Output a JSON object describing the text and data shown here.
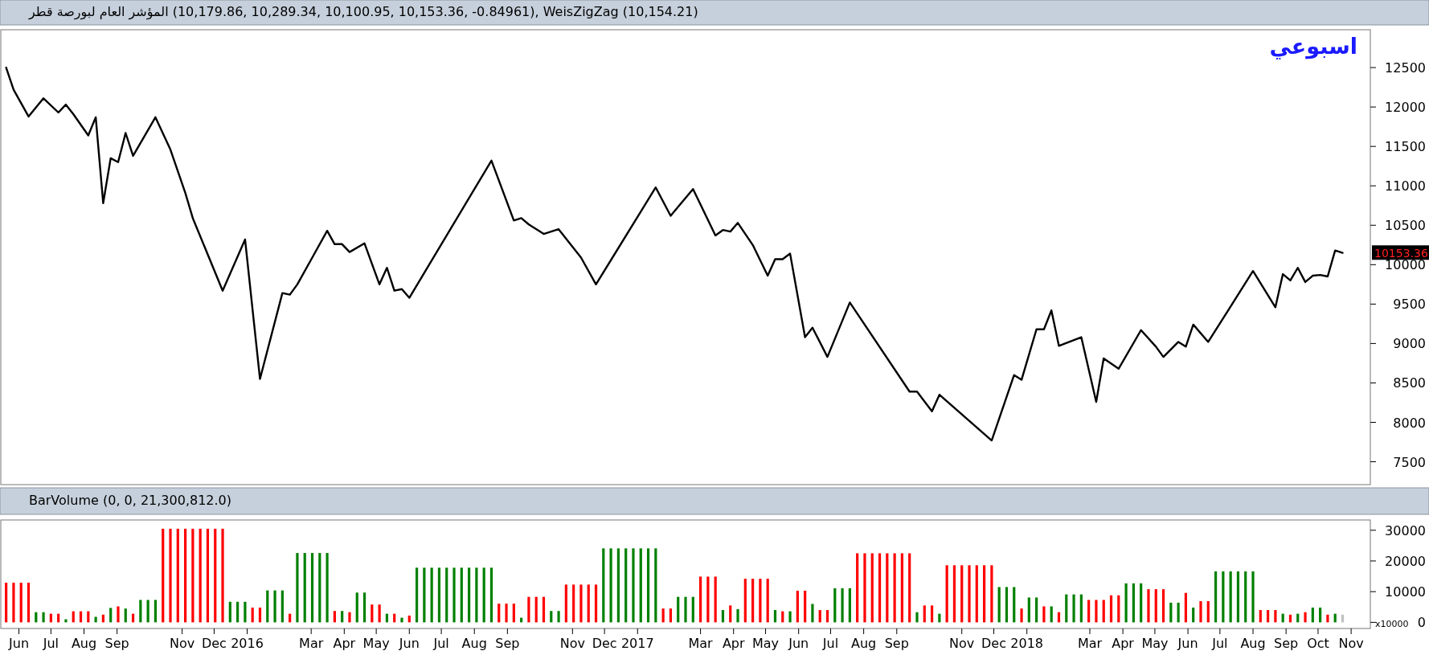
{
  "chart_data": [
    {
      "type": "line",
      "title": "المؤشر العام لبورصة قطر (10,179.86, 10,289.34, 10,100.95, 10,153.36, -0.84961), WeisZigZag (10,154.21)",
      "color": "#000000",
      "x": [
        "2015-05-20",
        "2015-05-27",
        "2015-06-10",
        "2015-06-24",
        "2015-07-08",
        "2015-07-15",
        "2015-07-22",
        "2015-08-05",
        "2015-08-12",
        "2015-08-19",
        "2015-08-26",
        "2015-09-02",
        "2015-09-09",
        "2015-09-16",
        "2015-10-07",
        "2015-10-21",
        "2015-11-04",
        "2015-11-11",
        "2015-12-09",
        "2015-12-30",
        "2016-01-13",
        "2016-02-03",
        "2016-02-10",
        "2016-02-17",
        "2016-03-02",
        "2016-03-16",
        "2016-03-23",
        "2016-03-30",
        "2016-04-06",
        "2016-04-20",
        "2016-05-04",
        "2016-05-11",
        "2016-05-18",
        "2016-05-25",
        "2016-06-01",
        "2016-08-17",
        "2016-09-07",
        "2016-09-14",
        "2016-09-21",
        "2016-10-05",
        "2016-10-19",
        "2016-11-09",
        "2016-11-23",
        "2017-01-18",
        "2017-02-01",
        "2017-02-22",
        "2017-03-15",
        "2017-03-22",
        "2017-03-29",
        "2017-04-05",
        "2017-04-19",
        "2017-05-03",
        "2017-05-10",
        "2017-05-17",
        "2017-05-24",
        "2017-06-07",
        "2017-06-14",
        "2017-06-28",
        "2017-07-19",
        "2017-09-13",
        "2017-09-20",
        "2017-10-04",
        "2017-10-11",
        "2017-11-29",
        "2017-12-20",
        "2017-12-27",
        "2018-01-10",
        "2018-01-17",
        "2018-01-24",
        "2018-01-31",
        "2018-02-21",
        "2018-03-07",
        "2018-03-14",
        "2018-03-28",
        "2018-04-18",
        "2018-05-02",
        "2018-05-09",
        "2018-05-23",
        "2018-05-30",
        "2018-06-06",
        "2018-06-20",
        "2018-08-01",
        "2018-08-22",
        "2018-08-29",
        "2018-09-05",
        "2018-09-12",
        "2018-09-19",
        "2018-09-26",
        "2018-10-03",
        "2018-10-10",
        "2018-10-17",
        "2018-10-24"
      ],
      "values": [
        12500,
        12220,
        11880,
        12110,
        11930,
        12030,
        11910,
        11640,
        11870,
        10780,
        11350,
        11300,
        11670,
        11380,
        11870,
        11460,
        10910,
        10590,
        9670,
        10320,
        8550,
        9640,
        9620,
        9750,
        10090,
        10430,
        10260,
        10260,
        10160,
        10270,
        9750,
        9960,
        9670,
        9690,
        9580,
        11320,
        10560,
        10590,
        10510,
        10390,
        10450,
        10090,
        9750,
        10980,
        10620,
        10960,
        10370,
        10440,
        10420,
        10530,
        10250,
        9860,
        10070,
        10070,
        10140,
        9080,
        9200,
        8830,
        9520,
        8390,
        8390,
        8140,
        8350,
        7770,
        8600,
        8540,
        9180,
        9180,
        9420,
        8970,
        9080,
        8260,
        8810,
        8680,
        9170,
        8960,
        8830,
        9020,
        8960,
        9240,
        9020,
        9920,
        9460,
        9880,
        9800,
        9960,
        9780,
        9860,
        9870,
        9850,
        10180,
        10150
      ],
      "xlim": [
        "2015-05-15",
        "2018-11-19"
      ],
      "ylim": [
        7210,
        12980
      ],
      "yticks": [
        7500,
        8000,
        8500,
        9000,
        9500,
        10000,
        10500,
        11000,
        11500,
        12000,
        12500
      ],
      "tick_labels": "y",
      "annotations": [
        "اسبوعي",
        {
          "text": "10153.36",
          "x": "2018-10-24",
          "y": 10153.36
        }
      ]
    },
    {
      "type": "bar",
      "title": "BarVolume (0, 0, 21,300,812.0)",
      "ylabel": "x10000",
      "x": [
        "2015-05-20",
        "2015-05-27",
        "2015-06-03",
        "2015-06-10",
        "2015-06-17",
        "2015-06-24",
        "2015-07-01",
        "2015-07-08",
        "2015-07-15",
        "2015-07-22",
        "2015-07-29",
        "2015-08-05",
        "2015-08-12",
        "2015-08-19",
        "2015-08-26",
        "2015-09-02",
        "2015-09-09",
        "2015-09-16",
        "2015-09-23",
        "2015-09-30",
        "2015-10-07",
        "2015-10-14",
        "2015-10-21",
        "2015-10-28",
        "2015-11-04",
        "2015-11-11",
        "2015-11-18",
        "2015-11-25",
        "2015-12-02",
        "2015-12-09",
        "2015-12-16",
        "2015-12-23",
        "2015-12-30",
        "2016-01-06",
        "2016-01-13",
        "2016-01-20",
        "2016-01-27",
        "2016-02-03",
        "2016-02-10",
        "2016-02-17",
        "2016-02-24",
        "2016-03-02",
        "2016-03-09",
        "2016-03-16",
        "2016-03-23",
        "2016-03-30",
        "2016-04-06",
        "2016-04-13",
        "2016-04-20",
        "2016-04-27",
        "2016-05-04",
        "2016-05-11",
        "2016-05-18",
        "2016-05-25",
        "2016-06-01",
        "2016-06-08",
        "2016-06-15",
        "2016-06-22",
        "2016-06-29",
        "2016-07-06",
        "2016-07-13",
        "2016-07-20",
        "2016-07-27",
        "2016-08-03",
        "2016-08-10",
        "2016-08-17",
        "2016-08-24",
        "2016-08-31",
        "2016-09-07",
        "2016-09-14",
        "2016-09-21",
        "2016-09-28",
        "2016-10-05",
        "2016-10-12",
        "2016-10-19",
        "2016-10-26",
        "2016-11-02",
        "2016-11-09",
        "2016-11-16",
        "2016-11-23",
        "2016-11-30",
        "2016-12-07",
        "2016-12-14",
        "2016-12-21",
        "2016-12-28",
        "2017-01-04",
        "2017-01-11",
        "2017-01-18",
        "2017-01-25",
        "2017-02-01",
        "2017-02-08",
        "2017-02-15",
        "2017-02-22",
        "2017-03-01",
        "2017-03-08",
        "2017-03-15",
        "2017-03-22",
        "2017-03-29",
        "2017-04-05",
        "2017-04-12",
        "2017-04-19",
        "2017-04-26",
        "2017-05-03",
        "2017-05-10",
        "2017-05-17",
        "2017-05-24",
        "2017-05-31",
        "2017-06-07",
        "2017-06-14",
        "2017-06-21",
        "2017-06-28",
        "2017-07-05",
        "2017-07-12",
        "2017-07-19",
        "2017-07-26",
        "2017-08-02",
        "2017-08-09",
        "2017-08-16",
        "2017-08-23",
        "2017-08-30",
        "2017-09-06",
        "2017-09-13",
        "2017-09-20",
        "2017-09-27",
        "2017-10-04",
        "2017-10-11",
        "2017-10-18",
        "2017-10-25",
        "2017-11-01",
        "2017-11-08",
        "2017-11-15",
        "2017-11-22",
        "2017-11-29",
        "2017-12-06",
        "2017-12-13",
        "2017-12-20",
        "2017-12-27",
        "2018-01-03",
        "2018-01-10",
        "2018-01-17",
        "2018-01-24",
        "2018-01-31",
        "2018-02-07",
        "2018-02-14",
        "2018-02-21",
        "2018-02-28",
        "2018-03-07",
        "2018-03-14",
        "2018-03-21",
        "2018-03-28",
        "2018-04-04",
        "2018-04-11",
        "2018-04-18",
        "2018-04-25",
        "2018-05-02",
        "2018-05-09",
        "2018-05-16",
        "2018-05-23",
        "2018-05-30",
        "2018-06-06",
        "2018-06-13",
        "2018-06-20",
        "2018-06-27",
        "2018-07-04",
        "2018-07-11",
        "2018-07-18",
        "2018-07-25",
        "2018-08-01",
        "2018-08-08",
        "2018-08-15",
        "2018-08-22",
        "2018-08-29",
        "2018-09-05",
        "2018-09-12",
        "2018-09-19",
        "2018-09-26",
        "2018-10-03",
        "2018-10-10",
        "2018-10-17",
        "2018-10-24"
      ],
      "values": [
        12900,
        12900,
        12900,
        12900,
        3300,
        3300,
        2800,
        2800,
        1000,
        3600,
        3600,
        3600,
        1800,
        2500,
        4700,
        5200,
        4500,
        2800,
        7300,
        7300,
        7300,
        30500,
        30500,
        30500,
        30500,
        30500,
        30500,
        30500,
        30500,
        30500,
        6700,
        6700,
        6700,
        4800,
        4800,
        10400,
        10400,
        10400,
        2800,
        22600,
        22600,
        22600,
        22600,
        22600,
        3700,
        3700,
        3300,
        9700,
        9700,
        5800,
        5800,
        2800,
        2800,
        1500,
        2200,
        17800,
        17800,
        17800,
        17800,
        17800,
        17800,
        17800,
        17800,
        17800,
        17800,
        17800,
        6100,
        6100,
        6100,
        1500,
        8300,
        8300,
        8300,
        3700,
        3700,
        12300,
        12300,
        12300,
        12300,
        12300,
        24100,
        24100,
        24100,
        24100,
        24100,
        24100,
        24100,
        24100,
        4500,
        4500,
        8300,
        8300,
        8300,
        14900,
        14900,
        14900,
        4000,
        5500,
        4300,
        14200,
        14200,
        14200,
        14200,
        4000,
        3600,
        3600,
        10300,
        10300,
        6000,
        4000,
        4000,
        11100,
        11100,
        11100,
        22500,
        22500,
        22500,
        22500,
        22500,
        22500,
        22500,
        22500,
        3300,
        5500,
        5500,
        2800,
        18600,
        18600,
        18600,
        18600,
        18600,
        18600,
        18600,
        11500,
        11500,
        11500,
        4500,
        8100,
        8100,
        5200,
        5200,
        3300,
        9100,
        9100,
        9100,
        7300,
        7300,
        7300,
        8800,
        8800,
        12700,
        12700,
        12700,
        10800,
        10800,
        10800,
        6400,
        6400,
        9600,
        4800,
        6900,
        6900,
        16600,
        16600,
        16600,
        16600,
        16600,
        16600,
        4000,
        4000,
        4000,
        2800,
        2500,
        2800,
        3300,
        4800,
        4800,
        2500,
        2800,
        2500
      ],
      "colors": [
        "#ff0000",
        "#ff0000",
        "#ff0000",
        "#ff0000",
        "#008000",
        "#008000",
        "#ff0000",
        "#ff0000",
        "#008000",
        "#ff0000",
        "#ff0000",
        "#ff0000",
        "#008000",
        "#ff0000",
        "#008000",
        "#ff0000",
        "#008000",
        "#ff0000",
        "#008000",
        "#008000",
        "#008000",
        "#ff0000",
        "#ff0000",
        "#ff0000",
        "#ff0000",
        "#ff0000",
        "#ff0000",
        "#ff0000",
        "#ff0000",
        "#ff0000",
        "#008000",
        "#008000",
        "#008000",
        "#ff0000",
        "#ff0000",
        "#008000",
        "#008000",
        "#008000",
        "#ff0000",
        "#008000",
        "#008000",
        "#008000",
        "#008000",
        "#008000",
        "#ff0000",
        "#008000",
        "#ff0000",
        "#008000",
        "#008000",
        "#ff0000",
        "#ff0000",
        "#008000",
        "#ff0000",
        "#008000",
        "#ff0000",
        "#008000",
        "#008000",
        "#008000",
        "#008000",
        "#008000",
        "#008000",
        "#008000",
        "#008000",
        "#008000",
        "#008000",
        "#008000",
        "#ff0000",
        "#ff0000",
        "#ff0000",
        "#008000",
        "#ff0000",
        "#ff0000",
        "#ff0000",
        "#008000",
        "#008000",
        "#ff0000",
        "#ff0000",
        "#ff0000",
        "#ff0000",
        "#ff0000",
        "#008000",
        "#008000",
        "#008000",
        "#008000",
        "#008000",
        "#008000",
        "#008000",
        "#008000",
        "#ff0000",
        "#ff0000",
        "#008000",
        "#008000",
        "#008000",
        "#ff0000",
        "#ff0000",
        "#ff0000",
        "#008000",
        "#ff0000",
        "#008000",
        "#ff0000",
        "#ff0000",
        "#ff0000",
        "#ff0000",
        "#008000",
        "#ff0000",
        "#008000",
        "#ff0000",
        "#ff0000",
        "#008000",
        "#ff0000",
        "#ff0000",
        "#008000",
        "#008000",
        "#008000",
        "#ff0000",
        "#ff0000",
        "#ff0000",
        "#ff0000",
        "#ff0000",
        "#ff0000",
        "#ff0000",
        "#ff0000",
        "#008000",
        "#ff0000",
        "#ff0000",
        "#008000",
        "#ff0000",
        "#ff0000",
        "#ff0000",
        "#ff0000",
        "#ff0000",
        "#ff0000",
        "#ff0000",
        "#008000",
        "#008000",
        "#008000",
        "#ff0000",
        "#008000",
        "#008000",
        "#ff0000",
        "#008000",
        "#ff0000",
        "#008000",
        "#008000",
        "#008000",
        "#ff0000",
        "#ff0000",
        "#ff0000",
        "#ff0000",
        "#ff0000",
        "#008000",
        "#008000",
        "#008000",
        "#ff0000",
        "#ff0000",
        "#ff0000",
        "#008000",
        "#008000",
        "#ff0000",
        "#008000",
        "#ff0000",
        "#ff0000",
        "#008000",
        "#008000",
        "#008000",
        "#008000",
        "#008000",
        "#008000",
        "#ff0000",
        "#ff0000",
        "#ff0000",
        "#008000",
        "#ff0000",
        "#008000",
        "#ff0000",
        "#008000",
        "#008000",
        "#ff0000",
        "#008000",
        "#c0c0c0"
      ],
      "xlim": [
        "2015-05-15",
        "2018-11-19"
      ],
      "ylim": [
        -2000,
        33350
      ],
      "yticks": [
        0,
        10000,
        20000,
        30000
      ],
      "xticks": [
        {
          "value": "2015-06-01",
          "label": "Jun"
        },
        {
          "value": "2015-07-01",
          "label": "Jul"
        },
        {
          "value": "2015-08-01",
          "label": "Aug"
        },
        {
          "value": "2015-09-01",
          "label": "Sep"
        },
        {
          "value": "2015-11-01",
          "label": "Nov"
        },
        {
          "value": "2015-12-01",
          "label": "Dec"
        },
        {
          "value": "2016-01-01",
          "label": "2016"
        },
        {
          "value": "2016-03-01",
          "label": "Mar"
        },
        {
          "value": "2016-04-01",
          "label": "Apr"
        },
        {
          "value": "2016-05-01",
          "label": "May"
        },
        {
          "value": "2016-06-01",
          "label": "Jun"
        },
        {
          "value": "2016-07-01",
          "label": "Jul"
        },
        {
          "value": "2016-08-01",
          "label": "Aug"
        },
        {
          "value": "2016-09-01",
          "label": "Sep"
        },
        {
          "value": "2016-11-01",
          "label": "Nov"
        },
        {
          "value": "2016-12-01",
          "label": "Dec"
        },
        {
          "value": "2017-01-01",
          "label": "2017"
        },
        {
          "value": "2017-03-01",
          "label": "Mar"
        },
        {
          "value": "2017-04-01",
          "label": "Apr"
        },
        {
          "value": "2017-05-01",
          "label": "May"
        },
        {
          "value": "2017-06-01",
          "label": "Jun"
        },
        {
          "value": "2017-07-01",
          "label": "Jul"
        },
        {
          "value": "2017-08-01",
          "label": "Aug"
        },
        {
          "value": "2017-09-01",
          "label": "Sep"
        },
        {
          "value": "2017-11-01",
          "label": "Nov"
        },
        {
          "value": "2017-12-01",
          "label": "Dec"
        },
        {
          "value": "2018-01-01",
          "label": "2018"
        },
        {
          "value": "2018-03-01",
          "label": "Mar"
        },
        {
          "value": "2018-04-01",
          "label": "Apr"
        },
        {
          "value": "2018-05-01",
          "label": "May"
        },
        {
          "value": "2018-06-01",
          "label": "Jun"
        },
        {
          "value": "2018-07-01",
          "label": "Jul"
        },
        {
          "value": "2018-08-01",
          "label": "Aug"
        },
        {
          "value": "2018-09-01",
          "label": "Sep"
        },
        {
          "value": "2018-10-01",
          "label": "Oct"
        },
        {
          "value": "2018-11-01",
          "label": "Nov"
        }
      ]
    }
  ]
}
